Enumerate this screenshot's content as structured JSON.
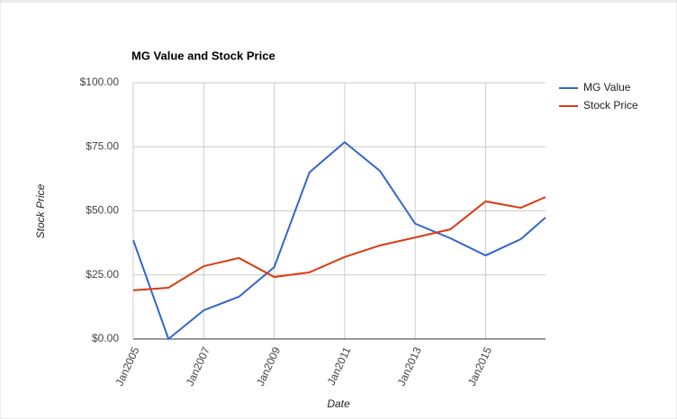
{
  "chart_data": {
    "type": "line",
    "title": "MG Value and Stock Price",
    "x_label": "Date",
    "y_label": "Stock Price",
    "x": [
      2005,
      2006,
      2007,
      2008,
      2009,
      2010,
      2011,
      2012,
      2013,
      2014,
      2015,
      2016,
      2016.7
    ],
    "xlim": [
      2005,
      2016.7
    ],
    "xticks": [
      {
        "value": 2005,
        "label": "Jan2005"
      },
      {
        "value": 2007,
        "label": "Jan2007"
      },
      {
        "value": 2009,
        "label": "Jan2009"
      },
      {
        "value": 2011,
        "label": "Jan2011"
      },
      {
        "value": 2013,
        "label": "Jan2013"
      },
      {
        "value": 2015,
        "label": "Jan2015"
      }
    ],
    "ylim": [
      0,
      100
    ],
    "yticks": [
      {
        "value": 0,
        "label": "$0.00"
      },
      {
        "value": 25,
        "label": "$25.00"
      },
      {
        "value": 50,
        "label": "$50.00"
      },
      {
        "value": 75,
        "label": "$75.00"
      },
      {
        "value": 100,
        "label": "$100.00"
      }
    ],
    "grid": true,
    "legend": "right",
    "series": [
      {
        "name": "MG Value",
        "color": "#3366cc",
        "values": [
          38.6,
          0,
          11.2,
          16.5,
          28,
          65,
          76.8,
          65.6,
          45,
          39.3,
          32.6,
          39,
          47.4
        ]
      },
      {
        "name": "Stock Price",
        "color": "#dc3912",
        "values": [
          19,
          20,
          28.4,
          31.6,
          24.2,
          26,
          32,
          36.5,
          39.6,
          42.8,
          53.7,
          51.2,
          55.4
        ]
      }
    ]
  }
}
